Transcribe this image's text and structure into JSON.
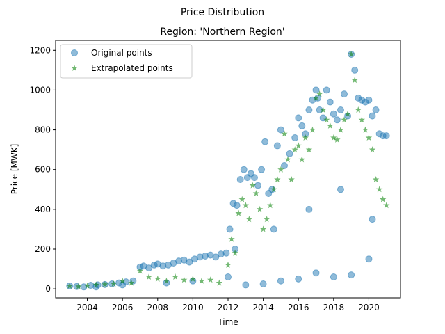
{
  "chart_data": {
    "type": "scatter",
    "title": "Price Distribution",
    "subtitle": "Region: 'Northern Region'",
    "xlabel": "Time",
    "ylabel": "Price [MWK]",
    "xlim": [
      2002.2,
      2021.8
    ],
    "ylim": [
      -45,
      1250
    ],
    "x_ticks": [
      2004,
      2006,
      2008,
      2010,
      2012,
      2014,
      2016,
      2018,
      2020
    ],
    "y_ticks": [
      0,
      200,
      400,
      600,
      800,
      1000,
      1200
    ],
    "legend_position": "top-left",
    "colors": {
      "original": "#1f77b4",
      "extrapolated": "#008000"
    },
    "series": [
      {
        "name": "Original points",
        "marker": "circle",
        "x": [
          2003.0,
          2003.4,
          2003.8,
          2004.2,
          2004.6,
          2005.0,
          2005.4,
          2005.8,
          2006.2,
          2006.6,
          2007.0,
          2007.2,
          2007.5,
          2007.8,
          2008.0,
          2008.3,
          2008.6,
          2008.9,
          2009.2,
          2009.5,
          2009.8,
          2010.1,
          2010.4,
          2010.7,
          2011.0,
          2011.3,
          2011.6,
          2011.9,
          2012.1,
          2012.3,
          2012.5,
          2012.7,
          2012.9,
          2013.1,
          2013.3,
          2013.5,
          2013.7,
          2013.9,
          2014.1,
          2014.3,
          2014.5,
          2014.8,
          2015.0,
          2015.2,
          2015.5,
          2015.8,
          2016.0,
          2016.2,
          2016.4,
          2016.6,
          2016.8,
          2017.0,
          2017.1,
          2017.2,
          2017.4,
          2017.6,
          2017.8,
          2018.0,
          2018.2,
          2018.4,
          2018.6,
          2018.8,
          2019.0,
          2019.2,
          2019.4,
          2019.6,
          2019.8,
          2020.0,
          2020.2,
          2020.4,
          2020.6,
          2020.8,
          2021.0,
          2004.5,
          2006.0,
          2008.5,
          2010.0,
          2012.0,
          2013.0,
          2014.0,
          2015.0,
          2016.0,
          2017.0,
          2018.0,
          2019.0,
          2020.0,
          2012.4,
          2014.6,
          2016.6,
          2018.4,
          2020.2
        ],
        "y": [
          15,
          12,
          10,
          18,
          20,
          22,
          25,
          30,
          35,
          40,
          110,
          115,
          105,
          120,
          125,
          115,
          120,
          130,
          140,
          145,
          135,
          150,
          160,
          165,
          170,
          160,
          175,
          180,
          300,
          430,
          420,
          550,
          600,
          560,
          580,
          560,
          520,
          600,
          740,
          480,
          500,
          720,
          800,
          620,
          680,
          760,
          860,
          820,
          780,
          900,
          950,
          1000,
          960,
          900,
          860,
          1000,
          940,
          880,
          850,
          900,
          980,
          870,
          1180,
          1100,
          960,
          950,
          940,
          950,
          870,
          900,
          780,
          770,
          770,
          10,
          20,
          30,
          40,
          60,
          20,
          25,
          40,
          50,
          80,
          60,
          70,
          150,
          200,
          300,
          400,
          500,
          350
        ]
      },
      {
        "name": "Extrapolated points",
        "marker": "star",
        "x": [
          2003.0,
          2003.5,
          2004.0,
          2004.5,
          2005.0,
          2005.5,
          2006.0,
          2006.5,
          2007.0,
          2007.5,
          2008.0,
          2008.5,
          2009.0,
          2009.5,
          2010.0,
          2010.5,
          2011.0,
          2011.5,
          2012.0,
          2012.2,
          2012.4,
          2012.6,
          2012.8,
          2013.0,
          2013.2,
          2013.4,
          2013.6,
          2013.8,
          2014.0,
          2014.2,
          2014.4,
          2014.6,
          2014.8,
          2015.0,
          2015.2,
          2015.4,
          2015.6,
          2015.8,
          2016.0,
          2016.2,
          2016.4,
          2016.6,
          2016.8,
          2017.0,
          2017.2,
          2017.4,
          2017.6,
          2017.8,
          2018.0,
          2018.2,
          2018.4,
          2018.6,
          2018.8,
          2019.0,
          2019.2,
          2019.4,
          2019.6,
          2019.8,
          2020.0,
          2020.2,
          2020.4,
          2020.6,
          2020.8,
          2021.0
        ],
        "y": [
          15,
          12,
          15,
          20,
          22,
          25,
          40,
          30,
          90,
          60,
          50,
          40,
          60,
          45,
          50,
          40,
          45,
          30,
          120,
          250,
          180,
          380,
          450,
          420,
          350,
          520,
          480,
          400,
          300,
          350,
          420,
          500,
          550,
          600,
          780,
          650,
          550,
          700,
          720,
          650,
          760,
          700,
          800,
          960,
          980,
          900,
          850,
          820,
          760,
          750,
          800,
          850,
          880,
          1180,
          1050,
          900,
          850,
          800,
          760,
          700,
          550,
          500,
          450,
          420
        ]
      }
    ]
  }
}
